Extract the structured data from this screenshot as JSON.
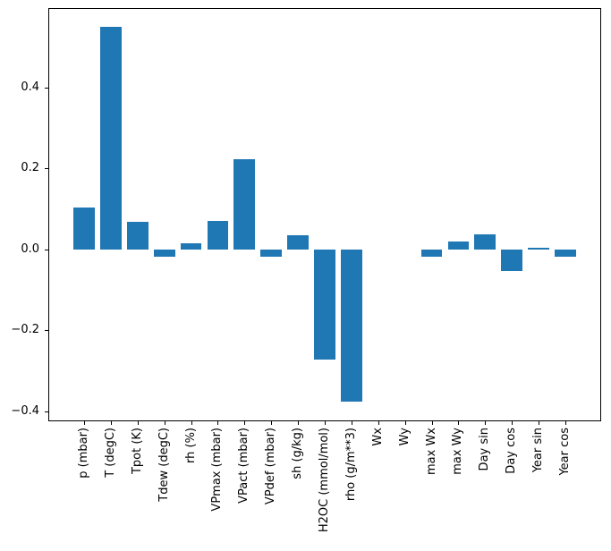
{
  "figure": {
    "background": "#ffffff"
  },
  "chart_data": {
    "type": "bar",
    "title": "",
    "xlabel": "",
    "ylabel": "",
    "categories": [
      "p (mbar)",
      "T (degC)",
      "Tpot (K)",
      "Tdew (degC)",
      "rh (%)",
      "VPmax (mbar)",
      "VPact (mbar)",
      "VPdef (mbar)",
      "sh (g/kg)",
      "H2OC (mmol/mol)",
      "rho (g/m**3)",
      "Wx",
      "Wy",
      "max Wx",
      "max Wy",
      "Day sin",
      "Day cos",
      "Year sin",
      "Year cos"
    ],
    "values": [
      0.103,
      0.551,
      0.068,
      -0.017,
      0.015,
      0.071,
      0.224,
      -0.019,
      0.035,
      -0.272,
      -0.376,
      0.0,
      0.0,
      -0.019,
      0.02,
      0.037,
      -0.054,
      0.005,
      -0.019
    ],
    "yticks": [
      -0.4,
      -0.2,
      0.0,
      0.2,
      0.4
    ],
    "ytick_labels": [
      "−0.4",
      "−0.2",
      "0.0",
      "0.2",
      "0.4"
    ],
    "ylim": [
      -0.425,
      0.597
    ],
    "xlim": [
      -1.34,
      19.34
    ],
    "bar_width": 0.8,
    "bar_color": "#1f77b4",
    "axis_color": "#000000",
    "grid": false,
    "legend": null
  }
}
